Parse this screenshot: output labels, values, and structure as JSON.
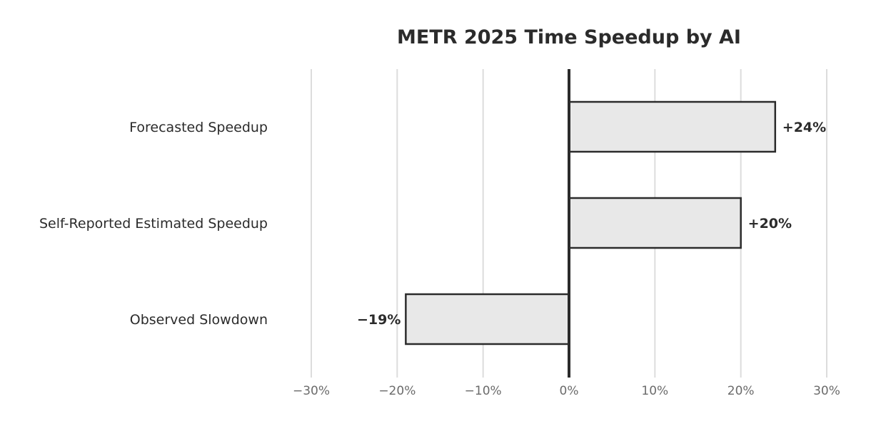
{
  "chart_data": {
    "type": "bar",
    "orientation": "horizontal",
    "title": "METR 2025 Time Speedup by AI",
    "xlabel": "",
    "ylabel": "",
    "categories": [
      "Forecasted Speedup",
      "Self-Reported Estimated Speedup",
      "Observed Slowdown"
    ],
    "values": [
      24,
      20,
      -19
    ],
    "value_labels": [
      "+24%",
      "+20%",
      "−19%"
    ],
    "xlim": [
      -30,
      30
    ],
    "x_ticks": [
      -30,
      -20,
      -10,
      0,
      10,
      20,
      30
    ],
    "x_tick_labels": [
      "−30%",
      "−20%",
      "−10%",
      "0%",
      "10%",
      "20%",
      "30%"
    ],
    "grid": "vertical",
    "legend": "none",
    "colors": {
      "bar_fill": "#e8e8e8",
      "bar_stroke": "#2b2b2b",
      "gridline": "#dcdcdc",
      "zero_line": "#2b2b2b",
      "text": "#2b2b2b",
      "tick_text": "#6b6b6b"
    }
  }
}
